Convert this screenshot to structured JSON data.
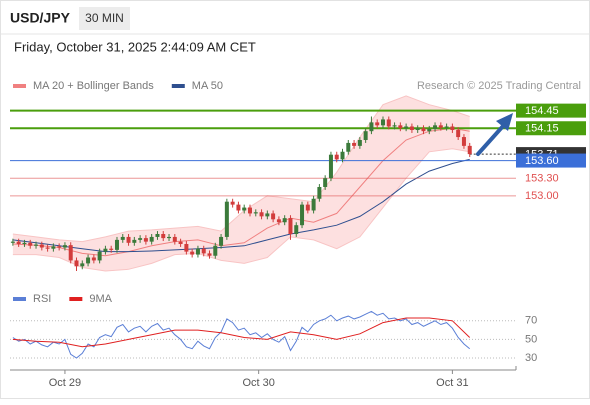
{
  "header": {
    "symbol": "USD/JPY",
    "timeframe": "30 MIN",
    "timestamp": "Friday, October 31, 2025 2:44:09 AM CET",
    "copyright": "Research © 2025 Trading Central"
  },
  "chart_data": [
    {
      "type": "candlestick",
      "xlim": [
        -0.5,
        87
      ],
      "ylim": [
        151.55,
        154.75
      ],
      "up_color": "#3b7a3b",
      "down_color": "#d23c3c",
      "open": [
        152.2,
        152.22,
        152.18,
        152.2,
        152.15,
        152.17,
        152.12,
        152.1,
        152.14,
        152.12,
        152.16,
        151.9,
        151.8,
        151.85,
        151.95,
        151.9,
        152.05,
        152.1,
        152.08,
        152.25,
        152.3,
        152.2,
        152.25,
        152.28,
        152.22,
        152.3,
        152.35,
        152.28,
        152.3,
        152.22,
        152.18,
        152.05,
        152.0,
        152.1,
        152.02,
        151.98,
        152.15,
        152.3,
        152.9,
        152.85,
        152.75,
        152.8,
        152.7,
        152.72,
        152.65,
        152.7,
        152.6,
        152.55,
        152.62,
        152.35,
        152.5,
        152.85,
        152.75,
        152.95,
        153.15,
        153.3,
        153.7,
        153.62,
        153.75,
        153.9,
        153.85,
        153.95,
        154.1,
        154.25,
        154.2,
        154.3,
        154.18,
        154.2,
        154.15,
        154.18,
        154.12,
        154.15,
        154.1,
        154.14,
        154.2,
        154.16,
        154.18,
        154.12,
        154.0,
        153.85
      ],
      "high": [
        152.27,
        152.27,
        152.25,
        152.25,
        152.22,
        152.22,
        152.17,
        152.19,
        152.19,
        152.21,
        152.21,
        151.95,
        151.9,
        152.0,
        152.0,
        152.1,
        152.15,
        152.15,
        152.3,
        152.35,
        152.35,
        152.3,
        152.33,
        152.33,
        152.35,
        152.4,
        152.4,
        152.35,
        152.35,
        152.27,
        152.23,
        152.1,
        152.15,
        152.15,
        152.07,
        152.2,
        152.35,
        152.95,
        152.95,
        152.9,
        152.85,
        152.85,
        152.77,
        152.77,
        152.75,
        152.75,
        152.65,
        152.67,
        152.67,
        152.55,
        152.9,
        152.9,
        153.0,
        153.2,
        153.35,
        153.75,
        153.75,
        153.8,
        153.95,
        153.95,
        154.0,
        154.15,
        154.35,
        154.3,
        154.35,
        154.35,
        154.25,
        154.25,
        154.23,
        154.23,
        154.2,
        154.2,
        154.19,
        154.25,
        154.25,
        154.23,
        154.23,
        154.17,
        154.05,
        153.9
      ],
      "low": [
        152.15,
        152.13,
        152.13,
        152.1,
        152.1,
        152.07,
        152.05,
        152.05,
        152.07,
        152.07,
        151.85,
        151.72,
        151.75,
        151.8,
        151.85,
        151.85,
        152.0,
        152.03,
        152.03,
        152.2,
        152.15,
        152.15,
        152.2,
        152.17,
        152.17,
        152.25,
        152.23,
        152.23,
        152.17,
        152.13,
        152.0,
        151.95,
        151.95,
        151.97,
        151.93,
        151.93,
        152.1,
        152.25,
        152.8,
        152.7,
        152.7,
        152.65,
        152.65,
        152.6,
        152.6,
        152.55,
        152.5,
        152.5,
        152.25,
        152.3,
        152.45,
        152.7,
        152.7,
        152.9,
        153.1,
        153.25,
        153.57,
        153.57,
        153.7,
        153.8,
        153.8,
        153.9,
        154.05,
        154.15,
        154.15,
        154.13,
        154.13,
        154.1,
        154.1,
        154.07,
        154.07,
        154.05,
        154.05,
        154.09,
        154.11,
        154.11,
        154.07,
        153.95,
        153.8,
        153.66
      ],
      "close": [
        152.22,
        152.18,
        152.2,
        152.15,
        152.17,
        152.12,
        152.1,
        152.14,
        152.12,
        152.16,
        151.9,
        151.8,
        151.85,
        151.95,
        151.9,
        152.05,
        152.1,
        152.08,
        152.25,
        152.3,
        152.2,
        152.25,
        152.28,
        152.22,
        152.3,
        152.35,
        152.28,
        152.3,
        152.22,
        152.18,
        152.05,
        152.0,
        152.1,
        152.02,
        151.98,
        152.15,
        152.3,
        152.9,
        152.85,
        152.75,
        152.8,
        152.7,
        152.72,
        152.65,
        152.7,
        152.6,
        152.55,
        152.62,
        152.35,
        152.5,
        152.85,
        152.75,
        152.95,
        153.15,
        153.3,
        153.7,
        153.62,
        153.75,
        153.9,
        153.85,
        153.95,
        154.1,
        154.25,
        154.2,
        154.3,
        154.18,
        154.2,
        154.15,
        154.18,
        154.12,
        154.15,
        154.1,
        154.14,
        154.2,
        154.16,
        154.18,
        154.12,
        154.0,
        153.85,
        153.71
      ],
      "series": [
        {
          "name": "MA 20 + Bollinger Bands",
          "color": "#f08080",
          "band_color": "#fde0e0",
          "x": [
            0,
            4,
            8,
            12,
            16,
            20,
            24,
            28,
            32,
            36,
            40,
            44,
            48,
            52,
            56,
            60,
            64,
            68,
            72,
            76,
            79
          ],
          "values": [
            152.18,
            152.16,
            152.12,
            152.02,
            151.98,
            152.05,
            152.15,
            152.22,
            152.25,
            152.15,
            152.2,
            152.45,
            152.62,
            152.55,
            152.7,
            153.15,
            153.6,
            153.95,
            154.1,
            154.15,
            154.1
          ],
          "upper": [
            152.35,
            152.3,
            152.25,
            152.22,
            152.3,
            152.4,
            152.42,
            152.45,
            152.48,
            152.4,
            152.75,
            153.0,
            152.95,
            152.9,
            153.4,
            154.0,
            154.55,
            154.7,
            154.55,
            154.45,
            154.35
          ],
          "lower": [
            152.0,
            152.0,
            151.95,
            151.78,
            151.72,
            151.75,
            151.85,
            152.0,
            152.02,
            151.9,
            151.85,
            151.95,
            152.3,
            152.25,
            152.1,
            152.3,
            152.8,
            153.3,
            153.75,
            153.8,
            153.75
          ]
        },
        {
          "name": "MA 50",
          "color": "#2f4f8f",
          "x": [
            0,
            4,
            8,
            12,
            16,
            20,
            24,
            28,
            32,
            36,
            40,
            44,
            48,
            52,
            56,
            60,
            64,
            68,
            72,
            76,
            79
          ],
          "values": [
            152.25,
            152.2,
            152.15,
            152.1,
            152.05,
            152.05,
            152.06,
            152.08,
            152.1,
            152.12,
            152.15,
            152.25,
            152.35,
            152.42,
            152.5,
            152.65,
            152.9,
            153.2,
            153.42,
            153.55,
            153.62
          ]
        }
      ],
      "levels": [
        {
          "value": 154.45,
          "color": "#4a9e0c",
          "style": "box"
        },
        {
          "value": 154.15,
          "color": "#4a9e0c",
          "style": "box"
        },
        {
          "value": 153.71,
          "color": "#333333",
          "style": "current"
        },
        {
          "value": 153.6,
          "label": "153.60",
          "color": "#3b6fd8",
          "style": "box"
        },
        {
          "value": 153.3,
          "label": "153.30",
          "color": "#e05050",
          "style": "text"
        },
        {
          "value": 153.0,
          "label": "153.00",
          "color": "#e05050",
          "style": "text"
        }
      ]
    },
    {
      "type": "line",
      "xlim": [
        -0.5,
        87
      ],
      "ylim": [
        16,
        88
      ],
      "yticks": [
        30,
        50,
        70
      ],
      "grid": true,
      "xticks": [
        {
          "value": 9,
          "label": "Oct 29"
        },
        {
          "value": 42.5,
          "label": "Oct 30"
        },
        {
          "value": 76,
          "label": "Oct 31"
        }
      ],
      "series": [
        {
          "name": "RSI",
          "color": "#5b7fd6",
          "values": [
            52,
            48,
            50,
            45,
            48,
            44,
            42,
            47,
            45,
            50,
            34,
            30,
            35,
            45,
            42,
            52,
            55,
            53,
            63,
            66,
            58,
            62,
            64,
            58,
            64,
            67,
            60,
            62,
            55,
            50,
            42,
            40,
            48,
            43,
            40,
            52,
            58,
            72,
            68,
            60,
            62,
            55,
            57,
            52,
            56,
            50,
            47,
            53,
            38,
            48,
            63,
            58,
            66,
            70,
            72,
            76,
            70,
            73,
            75,
            72,
            74,
            77,
            80,
            76,
            78,
            72,
            73,
            70,
            72,
            66,
            68,
            64,
            67,
            70,
            66,
            68,
            62,
            52,
            45,
            40
          ]
        },
        {
          "name": "9MA",
          "color": "#e02020",
          "x": [
            0,
            4,
            8,
            12,
            16,
            20,
            24,
            28,
            32,
            36,
            40,
            44,
            48,
            52,
            56,
            60,
            64,
            68,
            72,
            76,
            79
          ],
          "values": [
            50,
            48,
            47,
            42,
            45,
            50,
            55,
            60,
            60,
            57,
            52,
            50,
            58,
            55,
            50,
            56,
            68,
            73,
            73,
            70,
            52
          ]
        }
      ]
    }
  ]
}
